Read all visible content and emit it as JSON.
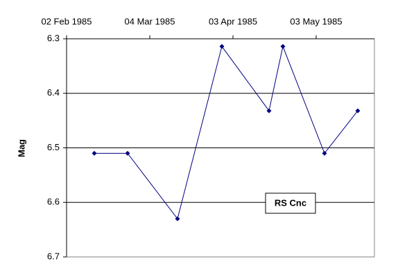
{
  "chart_data": {
    "type": "line",
    "y_label": "Mag",
    "annotation": "RS Cnc",
    "x_axis_position": "top",
    "y_inverted": true,
    "grid": true,
    "x": [
      "1985-02-12",
      "1985-02-24",
      "1985-03-14",
      "1985-03-30",
      "1985-04-16",
      "1985-04-21",
      "1985-05-06",
      "1985-05-18"
    ],
    "series": [
      {
        "color": "#000080",
        "values": [
          6.51,
          6.51,
          6.63,
          6.314,
          6.432,
          6.314,
          6.51,
          6.432
        ]
      }
    ],
    "xlim": [
      "1985-02-02",
      "1985-05-24"
    ],
    "xticks": [
      {
        "value": "1985-02-02",
        "label": "02 Feb 1985"
      },
      {
        "value": "1985-03-04",
        "label": "04 Mar 1985"
      },
      {
        "value": "1985-04-03",
        "label": "03 Apr 1985"
      },
      {
        "value": "1985-05-03",
        "label": "03 May 1985"
      }
    ],
    "ylim": [
      6.3,
      6.7
    ],
    "yticks": [
      6.3,
      6.4,
      6.5,
      6.6,
      6.7
    ]
  }
}
